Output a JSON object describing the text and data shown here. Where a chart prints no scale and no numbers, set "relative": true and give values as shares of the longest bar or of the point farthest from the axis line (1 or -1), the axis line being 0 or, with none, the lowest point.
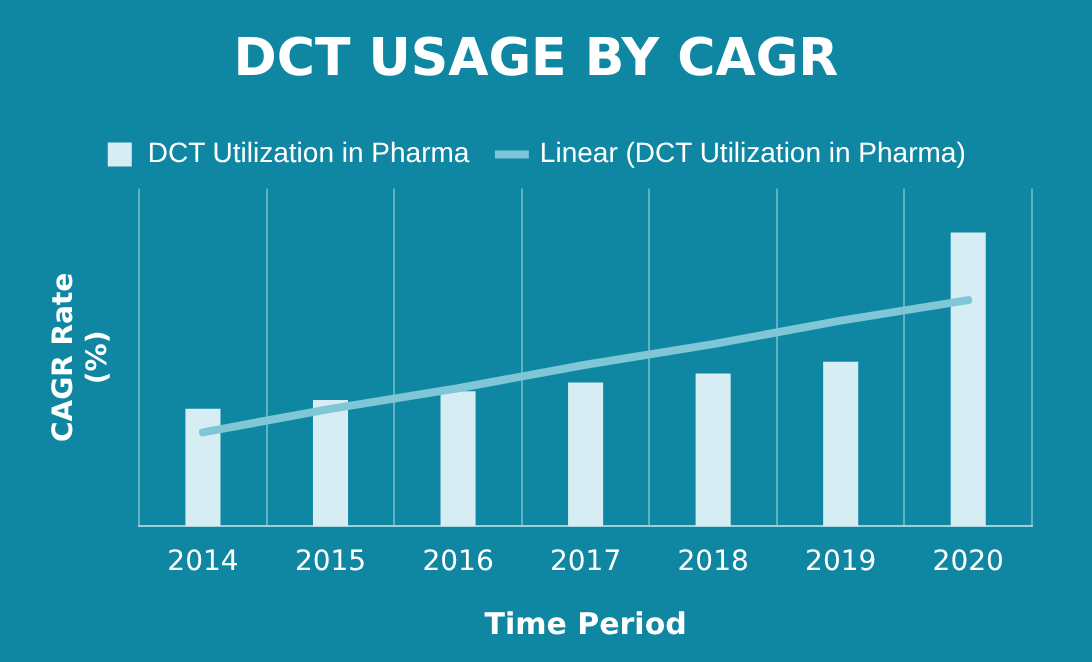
{
  "chart_data": {
    "type": "bar",
    "title": "DCT USAGE BY CAGR",
    "xlabel": "Time Period",
    "ylabel": "CAGR Rate (%)",
    "categories": [
      "2014",
      "2015",
      "2016",
      "2017",
      "2018",
      "2019",
      "2020"
    ],
    "relative": true,
    "series": [
      {
        "name": "DCT Utilization in Pharma",
        "color": "#d6edf3",
        "values": [
          0.4,
          0.43,
          0.46,
          0.49,
          0.52,
          0.56,
          1
        ]
      },
      {
        "name": "Linear (DCT Utilization in Pharma)",
        "type": "line",
        "color": "#7fc6d6",
        "values": [
          0.32,
          0.4,
          0.47,
          0.55,
          0.62,
          0.7,
          0.77
        ],
        "marker": "none",
        "line_style": "solid"
      }
    ],
    "grid": "x",
    "legend": "top"
  }
}
